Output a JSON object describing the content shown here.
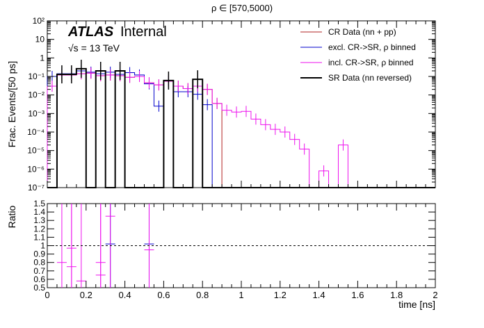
{
  "chart_data": {
    "type": "histogram",
    "title": "ρ ∈ [570,5000)",
    "atlas_label": "ATLAS",
    "atlas_status": "Internal",
    "energy_label": "√s = 13 TeV",
    "xlabel": "time [ns]",
    "top_panel": {
      "ylabel": "Frac. Events/[50 ps]",
      "yscale": "log",
      "ylim": [
        1e-07,
        100
      ],
      "yticks": [
        {
          "v": 100,
          "label": "10²"
        },
        {
          "v": 10,
          "label": "10"
        },
        {
          "v": 1,
          "label": "1"
        },
        {
          "v": 0.1,
          "label": "10⁻¹"
        },
        {
          "v": 0.01,
          "label": "10⁻²"
        },
        {
          "v": 0.001,
          "label": "10⁻³"
        },
        {
          "v": 0.0001,
          "label": "10⁻⁴"
        },
        {
          "v": 1e-05,
          "label": "10⁻⁵"
        },
        {
          "v": 1e-06,
          "label": "10⁻⁶"
        },
        {
          "v": 1e-07,
          "label": "10⁻⁷"
        }
      ]
    },
    "bottom_panel": {
      "ylabel": "Ratio",
      "ylim": [
        0.5,
        1.5
      ],
      "yticks": [
        "0.5",
        "0.6",
        "0.7",
        "0.8",
        "0.9",
        "1",
        "1.1",
        "1.2",
        "1.3",
        "1.4",
        "1.5"
      ],
      "reference_line": 1.0
    },
    "xlim": [
      0,
      2
    ],
    "xticks": [
      "0",
      "0.2",
      "0.4",
      "0.6",
      "0.8",
      "1",
      "1.2",
      "1.4",
      "1.6",
      "1.8",
      "2"
    ],
    "bin_width": 0.05,
    "series": [
      {
        "name": "CR Data (nn + pp)",
        "color": "#b22222",
        "width": 1,
        "values": [
          0.03,
          0.12,
          0.12,
          0.14,
          0.15,
          0.11,
          0.12,
          0.11,
          0.09,
          0.1,
          0.045,
          0.035,
          0.055,
          0.03,
          0.022,
          0.03,
          0.02,
          0.0035,
          0,
          0,
          0,
          0,
          0,
          0,
          0,
          0,
          0,
          0,
          0,
          0,
          0,
          0,
          0,
          0,
          0,
          0,
          0,
          0,
          0,
          0
        ]
      },
      {
        "name": "excl. CR->SR, ρ binned",
        "color": "#0000cc",
        "width": 1,
        "values": [
          0.1,
          0.14,
          0.14,
          0.2,
          0.17,
          0.14,
          0.17,
          0.13,
          0.16,
          0.12,
          0.04,
          0.0025,
          0.06,
          0.015,
          0.015,
          0.011,
          0.003,
          0,
          0,
          0,
          0,
          0,
          0,
          0,
          0,
          0,
          0,
          0,
          0,
          0,
          0,
          0,
          0,
          0,
          0,
          0,
          0,
          0,
          0,
          0
        ]
      },
      {
        "name": "incl. CR->SR, ρ binned",
        "color": "#ee11ee",
        "width": 1,
        "values": [
          0.03,
          0.12,
          0.12,
          0.14,
          0.15,
          0.11,
          0.12,
          0.11,
          0.09,
          0.1,
          0.045,
          0.035,
          0.055,
          0.03,
          0.022,
          0.03,
          0.02,
          0.0035,
          0.0015,
          0.0012,
          0.0013,
          0.0005,
          0.00025,
          0.00014,
          0.0001,
          4e-05,
          1.2e-05,
          1e-08,
          8e-07,
          1e-08,
          2e-05,
          0,
          0,
          0,
          0,
          0,
          0,
          0,
          0,
          0
        ]
      },
      {
        "name": "SR Data (nn reversed)",
        "color": "#000000",
        "width": 2,
        "values": [
          0,
          0.13,
          0.13,
          0.26,
          0,
          0.2,
          0,
          0.2,
          0,
          0,
          0,
          0,
          0.06,
          0,
          0,
          0.07,
          0,
          0,
          0,
          0,
          0,
          0,
          0,
          0,
          0,
          0,
          0,
          0,
          0,
          0,
          0,
          0,
          0,
          0,
          0,
          0,
          0,
          0,
          0,
          0
        ]
      }
    ],
    "ratio_points": [
      {
        "x": 0.075,
        "y": 0.8,
        "color": "#ee11ee"
      },
      {
        "x": 0.125,
        "y": 0.97,
        "color": "#ee11ee"
      },
      {
        "x": 0.125,
        "y": 0.75,
        "color": "#ee11ee"
      },
      {
        "x": 0.175,
        "y": 0.58,
        "color": "#ee11ee"
      },
      {
        "x": 0.275,
        "y": 0.8,
        "color": "#ee11ee"
      },
      {
        "x": 0.275,
        "y": 0.65,
        "color": "#ee11ee"
      },
      {
        "x": 0.325,
        "y": 1.02,
        "color": "#0000cc"
      },
      {
        "x": 0.325,
        "y": 1.35,
        "color": "#ee11ee"
      },
      {
        "x": 0.525,
        "y": 1.02,
        "color": "#0000cc"
      },
      {
        "x": 0.525,
        "y": 0.95,
        "color": "#ee11ee"
      }
    ]
  }
}
